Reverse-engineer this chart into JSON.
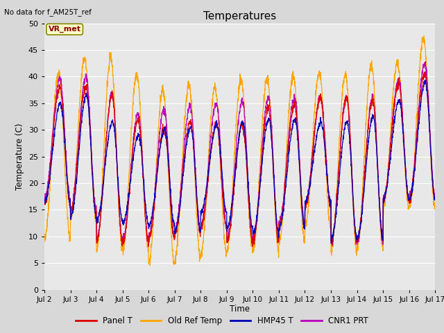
{
  "title": "Temperatures",
  "xlabel": "Time",
  "ylabel": "Temperature (C)",
  "note": "No data for f_AM25T_ref",
  "vr_met_label": "VR_met",
  "ylim": [
    0,
    50
  ],
  "yticks": [
    0,
    5,
    10,
    15,
    20,
    25,
    30,
    35,
    40,
    45,
    50
  ],
  "xtick_labels": [
    "Jul 2",
    "Jul 3",
    "Jul 4",
    "Jul 5",
    "Jul 6",
    "Jul 7",
    "Jul 8",
    "Jul 9",
    "Jul 10",
    "Jul 11",
    "Jul 12",
    "Jul 13",
    "Jul 14",
    "Jul 15",
    "Jul 16",
    "Jul 17"
  ],
  "legend_entries": [
    "Panel T",
    "Old Ref Temp",
    "HMP45 T",
    "CNR1 PRT"
  ],
  "colors": {
    "panel_t": "#dd0000",
    "old_ref": "#ffa500",
    "hmp45": "#0000bb",
    "cnr1": "#bb00bb"
  },
  "bg_color": "#e8e8e8",
  "grid_color": "#ffffff",
  "n_days": 15,
  "old_ref_peaks": [
    40.5,
    43.5,
    43.5,
    40.5,
    37.5,
    38.5,
    38.0,
    39.5,
    39.5,
    40.0,
    40.5,
    40.5,
    42.0,
    42.5,
    47.0,
    46.5
  ],
  "old_ref_mins": [
    9.5,
    13.0,
    7.5,
    7.5,
    5.0,
    6.0,
    7.0,
    7.5,
    7.5,
    9.0,
    12.0,
    7.5,
    8.0,
    15.5,
    15.5,
    16.0
  ],
  "panel_peaks": [
    38.0,
    38.0,
    36.5,
    32.0,
    30.5,
    31.5,
    31.0,
    31.0,
    34.0,
    34.5,
    36.0,
    36.0,
    35.5,
    38.5,
    40.5,
    41.0
  ],
  "panel_mins": [
    16.0,
    14.5,
    9.0,
    9.0,
    9.5,
    10.5,
    11.5,
    9.0,
    9.0,
    12.0,
    15.5,
    9.0,
    9.5,
    17.0,
    17.0,
    16.0
  ],
  "hmp45_peaks": [
    35.0,
    36.5,
    31.5,
    29.0,
    30.0,
    30.5,
    31.0,
    31.5,
    32.0,
    32.0,
    31.5,
    31.5,
    32.5,
    35.5,
    39.0,
    39.0
  ],
  "hmp45_mins": [
    16.5,
    13.5,
    13.0,
    12.5,
    12.0,
    11.0,
    14.5,
    11.5,
    10.5,
    11.5,
    16.5,
    9.5,
    9.5,
    17.0,
    17.0,
    16.5
  ],
  "cnr1_peaks": [
    39.5,
    40.0,
    36.5,
    33.0,
    34.0,
    34.5,
    35.0,
    35.5,
    36.0,
    36.0,
    36.0,
    36.0,
    36.0,
    39.5,
    42.5,
    43.0
  ],
  "cnr1_mins": [
    17.0,
    15.0,
    9.5,
    9.5,
    10.0,
    11.0,
    12.0,
    9.5,
    9.5,
    12.5,
    16.0,
    9.0,
    9.0,
    17.0,
    17.5,
    16.5
  ]
}
